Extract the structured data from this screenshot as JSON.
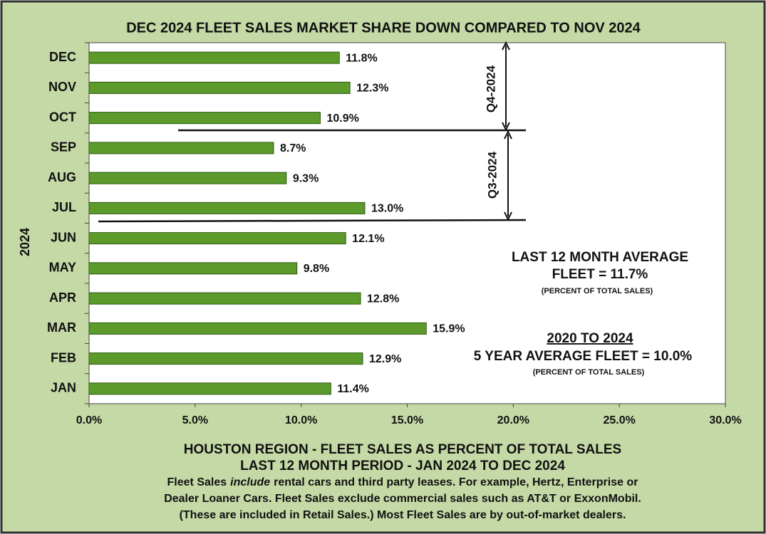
{
  "chart_data": {
    "type": "bar",
    "orientation": "horizontal",
    "title": "DEC 2024 FLEET SALES MARKET SHARE DOWN COMPARED TO NOV 2024",
    "ylabel": "2024",
    "categories": [
      "DEC",
      "NOV",
      "OCT",
      "SEP",
      "AUG",
      "JUL",
      "JUN",
      "MAY",
      "APR",
      "MAR",
      "FEB",
      "JAN"
    ],
    "values": [
      11.8,
      12.3,
      10.9,
      8.7,
      9.3,
      13.0,
      12.1,
      9.8,
      12.8,
      15.9,
      12.9,
      11.4
    ],
    "value_labels": [
      "11.8%",
      "12.3%",
      "10.9%",
      "8.7%",
      "9.3%",
      "13.0%",
      "12.1%",
      "9.8%",
      "12.8%",
      "15.9%",
      "12.9%",
      "11.4%"
    ],
    "color": "#5b9a2b",
    "xlim": [
      0,
      30
    ],
    "xticks": [
      {
        "value": 0,
        "label": "0.0%"
      },
      {
        "value": 5,
        "label": "5.0%"
      },
      {
        "value": 10,
        "label": "10.0%"
      },
      {
        "value": 15,
        "label": "15.0%"
      },
      {
        "value": 20,
        "label": "20.0%"
      },
      {
        "value": 25,
        "label": "25.0%"
      },
      {
        "value": 30,
        "label": "30.0%"
      }
    ],
    "annotations": [
      "Q4-2024",
      "Q3-2024",
      "LAST 12 MONTH AVERAGE",
      "FLEET = 11.7%",
      "(PERCENT OF TOTAL SALES)",
      "2020 TO 2024",
      "5 YEAR AVERAGE FLEET = 10.0%",
      "(PERCENT OF TOTAL SALES)"
    ],
    "footer": [
      "HOUSTON REGION - FLEET SALES AS PERCENT OF TOTAL SALES",
      "LAST 12 MONTH PERIOD - JAN 2024 TO DEC 2024"
    ],
    "notes": [
      [
        "Fleet Sales",
        "include",
        "rental cars and third party leases.  For example, Hertz, Enterprise or"
      ],
      [
        "Dealer Loaner Cars.  Fleet Sales exclude commercial sales such as AT&T or ExxonMobil."
      ],
      [
        "(These are included in Retail Sales.) Most Fleet Sales are by out-of-market dealers."
      ]
    ]
  }
}
